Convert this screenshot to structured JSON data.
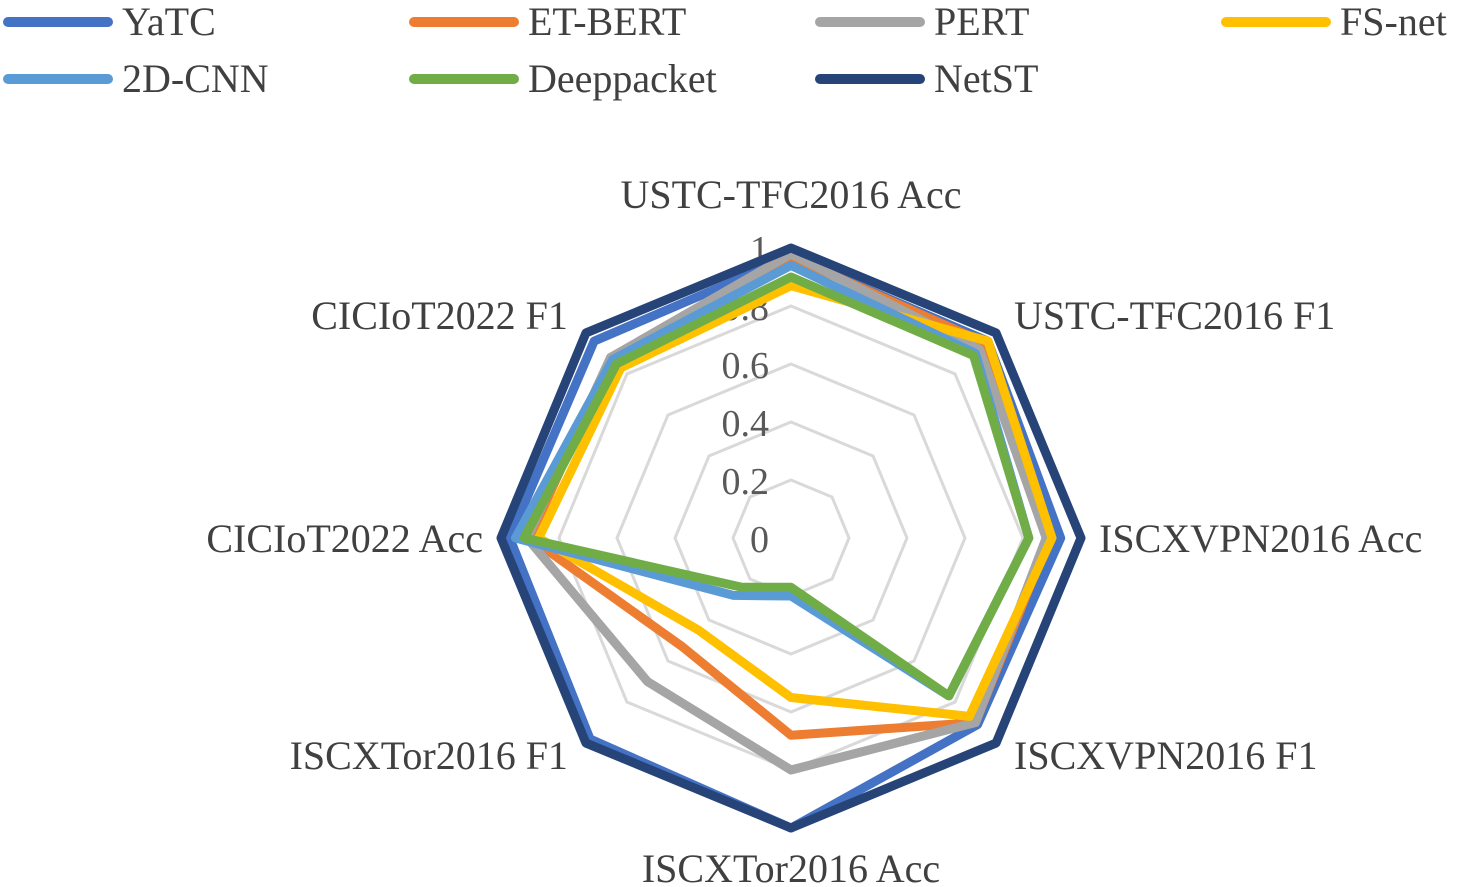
{
  "chart_data": {
    "type": "radar",
    "title": "",
    "axes": [
      "USTC-TFC2016 Acc",
      "USTC-TFC2016 F1",
      "ISCXVPN2016 Acc",
      "ISCXVPN2016 F1",
      "ISCXTor2016 Acc",
      "ISCXTor2016 F1",
      "CICIoT2022 Acc",
      "CICIoT2022 F1"
    ],
    "rlim": [
      0,
      1
    ],
    "ticks": [
      "0",
      "0.2",
      "0.4",
      "0.6",
      "0.8",
      "1"
    ],
    "grid": true,
    "legend_position": "top",
    "series": [
      {
        "name": "YaTC",
        "color": "#4472C4",
        "values": [
          0.97,
          0.96,
          0.93,
          0.91,
          1.0,
          0.98,
          0.97,
          0.96
        ]
      },
      {
        "name": "ET-BERT",
        "color": "#ED7D31",
        "values": [
          0.97,
          0.95,
          0.89,
          0.9,
          0.68,
          0.53,
          0.9,
          0.88
        ]
      },
      {
        "name": "PERT",
        "color": "#A5A5A5",
        "values": [
          0.98,
          0.92,
          0.88,
          0.9,
          0.8,
          0.7,
          0.91,
          0.88
        ]
      },
      {
        "name": "FS-net",
        "color": "#FFC000",
        "values": [
          0.87,
          0.96,
          0.9,
          0.87,
          0.55,
          0.45,
          0.87,
          0.83
        ]
      },
      {
        "name": "2D-CNN",
        "color": "#5B9BD5",
        "values": [
          0.94,
          0.9,
          0.82,
          0.77,
          0.2,
          0.28,
          0.95,
          0.87
        ]
      },
      {
        "name": "Deeppacket",
        "color": "#70AD47",
        "values": [
          0.9,
          0.89,
          0.82,
          0.77,
          0.17,
          0.24,
          0.92,
          0.85
        ]
      },
      {
        "name": "NetST",
        "color": "#264478",
        "values": [
          1.0,
          1.0,
          1.0,
          1.0,
          1.0,
          1.0,
          1.0,
          1.0
        ]
      }
    ]
  }
}
